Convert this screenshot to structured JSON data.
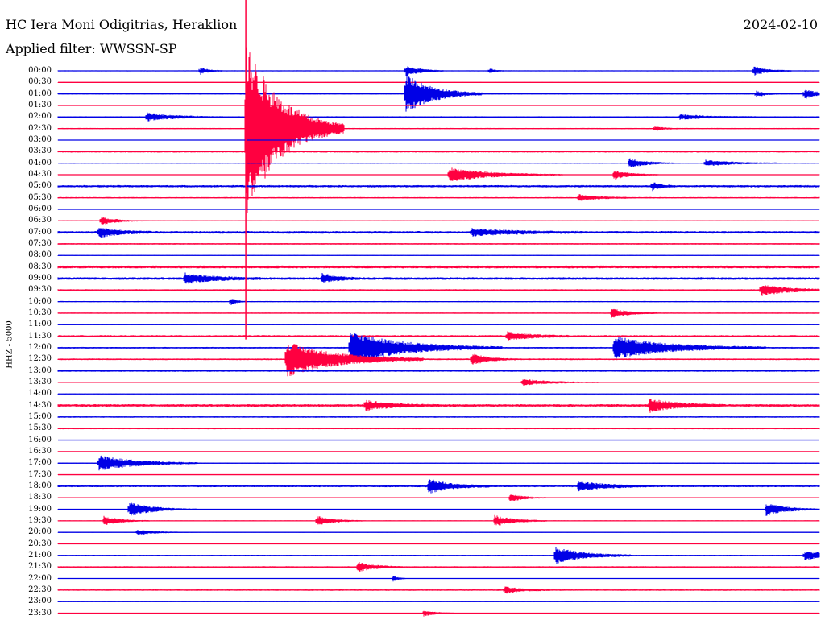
{
  "header": {
    "station_title": "HC Iera Moni Odigitrias, Heraklion",
    "filter_label": "Applied filter: WWSSN-SP",
    "date": "2024-02-10"
  },
  "chart_data": {
    "type": "line",
    "title": "HC Iera Moni Odigitrias, Heraklion",
    "subtitle": "Applied filter: WWSSN-SP",
    "date": "2024-02-10",
    "ylabel": "HHZ - 5000",
    "xlabel": "",
    "trace_duration_minutes": 30,
    "trace_colors": [
      "#0000e6",
      "#ff0040"
    ],
    "grid": false,
    "row_labels": [
      "00:00",
      "00:30",
      "01:00",
      "01:30",
      "02:00",
      "02:30",
      "03:00",
      "03:30",
      "04:00",
      "04:30",
      "05:00",
      "05:30",
      "06:00",
      "06:30",
      "07:00",
      "07:30",
      "08:00",
      "08:30",
      "09:00",
      "09:30",
      "10:00",
      "10:30",
      "11:00",
      "11:30",
      "12:00",
      "12:30",
      "13:00",
      "13:30",
      "14:00",
      "14:30",
      "15:00",
      "15:30",
      "16:00",
      "16:30",
      "17:00",
      "17:30",
      "18:00",
      "18:30",
      "19:00",
      "19:30",
      "20:00",
      "20:30",
      "21:00",
      "21:30",
      "22:00",
      "22:30",
      "23:00",
      "23:30"
    ],
    "noise_levels": [
      0.6,
      0.4,
      0.8,
      0.4,
      0.9,
      0.8,
      0.4,
      1.2,
      0.6,
      0.5,
      1.4,
      0.9,
      0.5,
      0.5,
      1.6,
      0.9,
      0.5,
      1.8,
      1.6,
      1.0,
      0.7,
      0.7,
      0.6,
      1.4,
      1.0,
      1.0,
      1.2,
      0.6,
      0.5,
      1.6,
      0.9,
      0.9,
      0.3,
      0.4,
      0.7,
      0.4,
      1.2,
      0.6,
      0.5,
      0.6,
      0.4,
      0.5,
      0.9,
      0.9,
      0.4,
      0.9,
      0.6,
      0.5
    ],
    "events": [
      {
        "row": 0,
        "minute": 5.6,
        "amp": 5,
        "duration": 0.3
      },
      {
        "row": 0,
        "minute": 13.7,
        "amp": 7,
        "duration": 0.5
      },
      {
        "row": 0,
        "minute": 17.0,
        "amp": 3,
        "duration": 0.2
      },
      {
        "row": 0,
        "minute": 27.4,
        "amp": 6,
        "duration": 0.5
      },
      {
        "row": 2,
        "minute": 13.7,
        "amp": 25,
        "duration": 1.0
      },
      {
        "row": 2,
        "minute": 27.5,
        "amp": 4,
        "duration": 0.3
      },
      {
        "row": 2,
        "minute": 29.4,
        "amp": 6,
        "duration": 0.5
      },
      {
        "row": 4,
        "minute": 3.5,
        "amp": 5,
        "duration": 1.0
      },
      {
        "row": 4,
        "minute": 24.5,
        "amp": 3,
        "duration": 1.0
      },
      {
        "row": 5,
        "minute": 7.4,
        "amp": 110,
        "duration": 1.3
      },
      {
        "row": 5,
        "minute": 23.5,
        "amp": 3,
        "duration": 0.3
      },
      {
        "row": 8,
        "minute": 22.5,
        "amp": 6,
        "duration": 0.6
      },
      {
        "row": 8,
        "minute": 25.5,
        "amp": 4,
        "duration": 1.0
      },
      {
        "row": 9,
        "minute": 15.4,
        "amp": 9,
        "duration": 1.5
      },
      {
        "row": 9,
        "minute": 21.9,
        "amp": 6,
        "duration": 0.6
      },
      {
        "row": 10,
        "minute": 23.4,
        "amp": 5,
        "duration": 0.3
      },
      {
        "row": 11,
        "minute": 20.5,
        "amp": 4,
        "duration": 0.7
      },
      {
        "row": 13,
        "minute": 1.7,
        "amp": 5,
        "duration": 0.6
      },
      {
        "row": 14,
        "minute": 1.6,
        "amp": 6,
        "duration": 0.7
      },
      {
        "row": 14,
        "minute": 16.3,
        "amp": 4,
        "duration": 1.5
      },
      {
        "row": 18,
        "minute": 5.0,
        "amp": 6,
        "duration": 1.0
      },
      {
        "row": 18,
        "minute": 10.4,
        "amp": 6,
        "duration": 0.5
      },
      {
        "row": 19,
        "minute": 27.7,
        "amp": 7,
        "duration": 1.0
      },
      {
        "row": 20,
        "minute": 6.8,
        "amp": 5,
        "duration": 0.2
      },
      {
        "row": 21,
        "minute": 21.8,
        "amp": 6,
        "duration": 0.6
      },
      {
        "row": 23,
        "minute": 17.7,
        "amp": 5,
        "duration": 0.8
      },
      {
        "row": 24,
        "minute": 11.5,
        "amp": 20,
        "duration": 2.0
      },
      {
        "row": 24,
        "minute": 21.9,
        "amp": 14,
        "duration": 2.0
      },
      {
        "row": 25,
        "minute": 9.0,
        "amp": 22,
        "duration": 1.8
      },
      {
        "row": 25,
        "minute": 16.3,
        "amp": 7,
        "duration": 0.6
      },
      {
        "row": 27,
        "minute": 18.3,
        "amp": 4,
        "duration": 1.0
      },
      {
        "row": 29,
        "minute": 12.1,
        "amp": 6,
        "duration": 0.9
      },
      {
        "row": 29,
        "minute": 23.3,
        "amp": 8,
        "duration": 1.0
      },
      {
        "row": 34,
        "minute": 1.6,
        "amp": 10,
        "duration": 1.3
      },
      {
        "row": 36,
        "minute": 14.6,
        "amp": 9,
        "duration": 0.8
      },
      {
        "row": 36,
        "minute": 20.5,
        "amp": 6,
        "duration": 1.0
      },
      {
        "row": 37,
        "minute": 17.8,
        "amp": 5,
        "duration": 0.5
      },
      {
        "row": 38,
        "minute": 2.8,
        "amp": 9,
        "duration": 0.9
      },
      {
        "row": 38,
        "minute": 27.9,
        "amp": 8,
        "duration": 0.8
      },
      {
        "row": 39,
        "minute": 1.8,
        "amp": 6,
        "duration": 0.6
      },
      {
        "row": 39,
        "minute": 10.2,
        "amp": 6,
        "duration": 0.6
      },
      {
        "row": 39,
        "minute": 17.2,
        "amp": 7,
        "duration": 0.7
      },
      {
        "row": 40,
        "minute": 3.1,
        "amp": 3,
        "duration": 0.8
      },
      {
        "row": 42,
        "minute": 19.6,
        "amp": 10,
        "duration": 1.0
      },
      {
        "row": 42,
        "minute": 29.4,
        "amp": 5,
        "duration": 1.2
      },
      {
        "row": 43,
        "minute": 11.8,
        "amp": 6,
        "duration": 0.6
      },
      {
        "row": 44,
        "minute": 13.2,
        "amp": 4,
        "duration": 0.2
      },
      {
        "row": 45,
        "minute": 17.6,
        "amp": 4,
        "duration": 0.6
      },
      {
        "row": 47,
        "minute": 14.4,
        "amp": 4,
        "duration": 0.4
      }
    ]
  }
}
